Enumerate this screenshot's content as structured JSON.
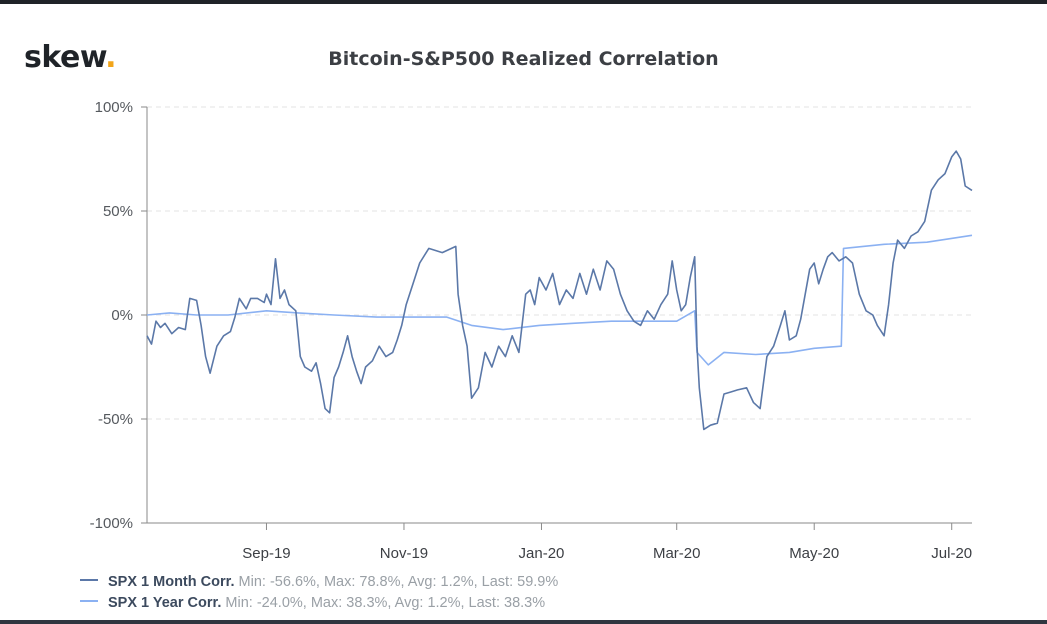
{
  "header": {
    "logo": {
      "text": "skew",
      "dot": "."
    },
    "title": "Bitcoin-S&P500 Realized Correlation"
  },
  "legend": [
    {
      "name": "SPX 1 Month Corr.",
      "stats": "Min: -56.6%, Max: 78.8%, Avg: 1.2%, Last: 59.9%",
      "color": "#5b78a8"
    },
    {
      "name": "SPX 1 Year Corr.",
      "stats": "Min: -24.0%, Max: 38.3%, Avg: 1.2%, Last: 38.3%",
      "color": "#8bb1f2"
    }
  ],
  "chart_data": {
    "type": "line",
    "title": "Bitcoin-S&P500 Realized Correlation",
    "xlabel": "",
    "ylabel": "",
    "x_range": [
      "2019-07-10",
      "2020-07-10"
    ],
    "ylim": [
      -100,
      100
    ],
    "y_ticks": [
      -100,
      -50,
      0,
      50,
      100
    ],
    "y_tick_labels": [
      "-100%",
      "-50%",
      "0%",
      "50%",
      "100%"
    ],
    "x_ticks": [
      "2019-09-01",
      "2019-11-01",
      "2020-01-01",
      "2020-03-01",
      "2020-05-01",
      "2020-07-01"
    ],
    "x_tick_labels": [
      "Sep-19",
      "Nov-19",
      "Jan-20",
      "Mar-20",
      "May-20",
      "Jul-20"
    ],
    "grid": "horizontal dashed",
    "legend_position": "bottom-left",
    "series": [
      {
        "name": "SPX 1 Month Corr.",
        "color": "#5b78a8",
        "points": [
          [
            "2019-07-10",
            -10
          ],
          [
            "2019-07-12",
            -14
          ],
          [
            "2019-07-14",
            -3
          ],
          [
            "2019-07-16",
            -6
          ],
          [
            "2019-07-18",
            -4
          ],
          [
            "2019-07-21",
            -9
          ],
          [
            "2019-07-24",
            -6
          ],
          [
            "2019-07-27",
            -7
          ],
          [
            "2019-07-29",
            8
          ],
          [
            "2019-08-01",
            7
          ],
          [
            "2019-08-03",
            -5
          ],
          [
            "2019-08-05",
            -20
          ],
          [
            "2019-08-07",
            -28
          ],
          [
            "2019-08-10",
            -15
          ],
          [
            "2019-08-13",
            -10
          ],
          [
            "2019-08-16",
            -8
          ],
          [
            "2019-08-18",
            -1
          ],
          [
            "2019-08-20",
            8
          ],
          [
            "2019-08-23",
            3
          ],
          [
            "2019-08-25",
            8
          ],
          [
            "2019-08-28",
            8
          ],
          [
            "2019-08-31",
            6
          ],
          [
            "2019-09-01",
            10
          ],
          [
            "2019-09-03",
            5
          ],
          [
            "2019-09-05",
            27
          ],
          [
            "2019-09-07",
            8
          ],
          [
            "2019-09-09",
            12
          ],
          [
            "2019-09-11",
            5
          ],
          [
            "2019-09-14",
            2
          ],
          [
            "2019-09-16",
            -20
          ],
          [
            "2019-09-18",
            -25
          ],
          [
            "2019-09-21",
            -27
          ],
          [
            "2019-09-23",
            -23
          ],
          [
            "2019-09-25",
            -33
          ],
          [
            "2019-09-27",
            -45
          ],
          [
            "2019-09-29",
            -47
          ],
          [
            "2019-10-01",
            -30
          ],
          [
            "2019-10-03",
            -25
          ],
          [
            "2019-10-05",
            -18
          ],
          [
            "2019-10-07",
            -10
          ],
          [
            "2019-10-09",
            -20
          ],
          [
            "2019-10-11",
            -27
          ],
          [
            "2019-10-13",
            -33
          ],
          [
            "2019-10-15",
            -25
          ],
          [
            "2019-10-18",
            -22
          ],
          [
            "2019-10-21",
            -15
          ],
          [
            "2019-10-24",
            -20
          ],
          [
            "2019-10-27",
            -18
          ],
          [
            "2019-10-29",
            -12
          ],
          [
            "2019-10-31",
            -5
          ],
          [
            "2019-11-02",
            5
          ],
          [
            "2019-11-05",
            15
          ],
          [
            "2019-11-08",
            25
          ],
          [
            "2019-11-12",
            32
          ],
          [
            "2019-11-18",
            30
          ],
          [
            "2019-11-24",
            33
          ],
          [
            "2019-11-25",
            10
          ],
          [
            "2019-11-27",
            -5
          ],
          [
            "2019-11-29",
            -15
          ],
          [
            "2019-12-01",
            -40
          ],
          [
            "2019-12-04",
            -35
          ],
          [
            "2019-12-07",
            -18
          ],
          [
            "2019-12-10",
            -25
          ],
          [
            "2019-12-13",
            -15
          ],
          [
            "2019-12-16",
            -20
          ],
          [
            "2019-12-19",
            -10
          ],
          [
            "2019-12-22",
            -18
          ],
          [
            "2019-12-25",
            10
          ],
          [
            "2019-12-27",
            12
          ],
          [
            "2019-12-29",
            5
          ],
          [
            "2019-12-31",
            18
          ],
          [
            "2020-01-03",
            12
          ],
          [
            "2020-01-06",
            20
          ],
          [
            "2020-01-09",
            5
          ],
          [
            "2020-01-12",
            12
          ],
          [
            "2020-01-15",
            8
          ],
          [
            "2020-01-18",
            20
          ],
          [
            "2020-01-21",
            10
          ],
          [
            "2020-01-24",
            22
          ],
          [
            "2020-01-27",
            12
          ],
          [
            "2020-01-30",
            26
          ],
          [
            "2020-02-02",
            22
          ],
          [
            "2020-02-05",
            10
          ],
          [
            "2020-02-08",
            2
          ],
          [
            "2020-02-11",
            -3
          ],
          [
            "2020-02-14",
            -5
          ],
          [
            "2020-02-17",
            2
          ],
          [
            "2020-02-20",
            -2
          ],
          [
            "2020-02-23",
            5
          ],
          [
            "2020-02-26",
            10
          ],
          [
            "2020-02-28",
            26
          ],
          [
            "2020-03-01",
            12
          ],
          [
            "2020-03-03",
            2
          ],
          [
            "2020-03-05",
            5
          ],
          [
            "2020-03-07",
            18
          ],
          [
            "2020-03-09",
            28
          ],
          [
            "2020-03-10",
            -15
          ],
          [
            "2020-03-11",
            -35
          ],
          [
            "2020-03-13",
            -55
          ],
          [
            "2020-03-16",
            -53
          ],
          [
            "2020-03-19",
            -52
          ],
          [
            "2020-03-22",
            -38
          ],
          [
            "2020-03-25",
            -37
          ],
          [
            "2020-03-28",
            -36
          ],
          [
            "2020-04-01",
            -35
          ],
          [
            "2020-04-04",
            -42
          ],
          [
            "2020-04-07",
            -45
          ],
          [
            "2020-04-10",
            -20
          ],
          [
            "2020-04-13",
            -15
          ],
          [
            "2020-04-16",
            -5
          ],
          [
            "2020-04-18",
            2
          ],
          [
            "2020-04-20",
            -12
          ],
          [
            "2020-04-23",
            -10
          ],
          [
            "2020-04-25",
            -2
          ],
          [
            "2020-04-27",
            10
          ],
          [
            "2020-04-29",
            22
          ],
          [
            "2020-05-01",
            25
          ],
          [
            "2020-05-03",
            15
          ],
          [
            "2020-05-05",
            22
          ],
          [
            "2020-05-07",
            28
          ],
          [
            "2020-05-09",
            30
          ],
          [
            "2020-05-12",
            26
          ],
          [
            "2020-05-15",
            28
          ],
          [
            "2020-05-18",
            25
          ],
          [
            "2020-05-21",
            10
          ],
          [
            "2020-05-24",
            2
          ],
          [
            "2020-05-27",
            0
          ],
          [
            "2020-05-29",
            -5
          ],
          [
            "2020-06-01",
            -10
          ],
          [
            "2020-06-03",
            5
          ],
          [
            "2020-06-05",
            25
          ],
          [
            "2020-06-07",
            36
          ],
          [
            "2020-06-10",
            32
          ],
          [
            "2020-06-13",
            38
          ],
          [
            "2020-06-16",
            40
          ],
          [
            "2020-06-19",
            45
          ],
          [
            "2020-06-22",
            60
          ],
          [
            "2020-06-25",
            65
          ],
          [
            "2020-06-28",
            68
          ],
          [
            "2020-07-01",
            76
          ],
          [
            "2020-07-03",
            78.8
          ],
          [
            "2020-07-05",
            75
          ],
          [
            "2020-07-07",
            62
          ],
          [
            "2020-07-10",
            59.9
          ]
        ]
      },
      {
        "name": "SPX 1 Year Corr.",
        "color": "#8bb1f2",
        "points": [
          [
            "2019-07-10",
            0
          ],
          [
            "2019-07-20",
            1
          ],
          [
            "2019-08-01",
            0
          ],
          [
            "2019-08-15",
            0
          ],
          [
            "2019-09-01",
            2
          ],
          [
            "2019-09-15",
            1
          ],
          [
            "2019-10-01",
            0
          ],
          [
            "2019-10-20",
            -1
          ],
          [
            "2019-11-01",
            -1
          ],
          [
            "2019-11-20",
            -1
          ],
          [
            "2019-12-01",
            -5
          ],
          [
            "2019-12-15",
            -7
          ],
          [
            "2019-12-31",
            -5
          ],
          [
            "2020-01-15",
            -4
          ],
          [
            "2020-02-01",
            -3
          ],
          [
            "2020-02-15",
            -3
          ],
          [
            "2020-03-01",
            -3
          ],
          [
            "2020-03-09",
            2
          ],
          [
            "2020-03-10",
            -18
          ],
          [
            "2020-03-15",
            -24
          ],
          [
            "2020-03-22",
            -18
          ],
          [
            "2020-04-05",
            -19
          ],
          [
            "2020-04-20",
            -18
          ],
          [
            "2020-05-01",
            -16
          ],
          [
            "2020-05-13",
            -15
          ],
          [
            "2020-05-14",
            32
          ],
          [
            "2020-06-01",
            34
          ],
          [
            "2020-06-20",
            35
          ],
          [
            "2020-07-10",
            38.3
          ]
        ]
      }
    ]
  }
}
